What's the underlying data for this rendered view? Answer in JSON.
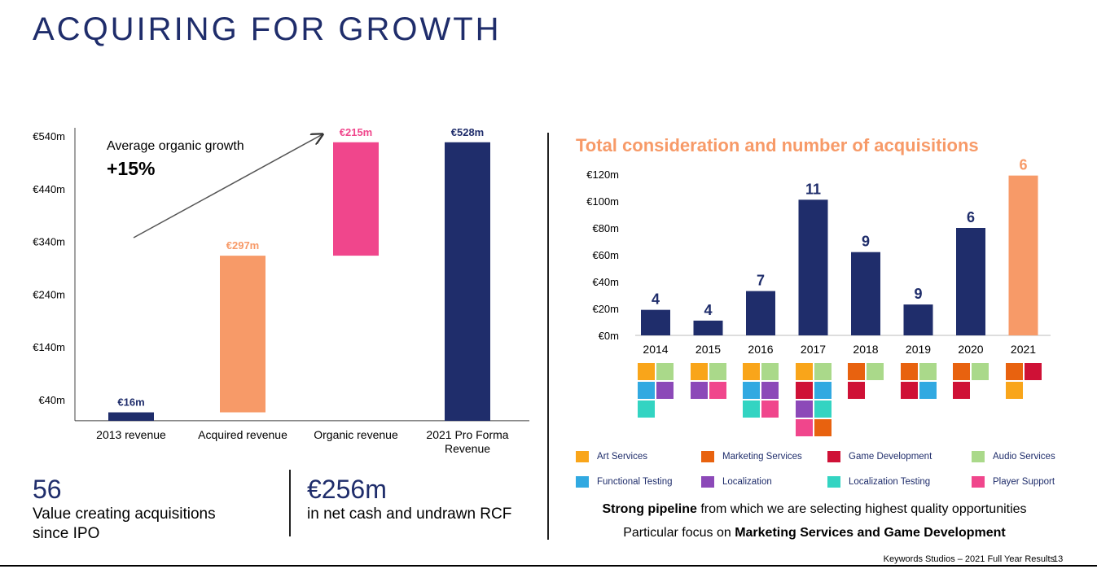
{
  "page_title": "ACQUIRING FOR GROWTH",
  "colors": {
    "navy": "#1f2d6b",
    "orange": "#f79a68",
    "pink": "#f0468c"
  },
  "growth_annotation": {
    "label": "Average organic growth",
    "value": "+15%"
  },
  "kpis": [
    {
      "value": "56",
      "text_line1": "Value creating acquisitions",
      "text_line2": "since IPO"
    },
    {
      "value": "€256m",
      "text_line1": "in net cash and undrawn RCF",
      "text_line2": ""
    }
  ],
  "chart2_title": "Total consideration and number of acquisitions",
  "pipeline": {
    "line1_bold": "Strong pipeline",
    "line1_rest": " from which we are selecting highest quality opportunities",
    "line2_rest": "Particular focus on ",
    "line2_bold": "Marketing Services and Game Development"
  },
  "legend": [
    {
      "name": "Art Services",
      "color": "#f9a51a"
    },
    {
      "name": "Marketing Services",
      "color": "#e8620f"
    },
    {
      "name": "Game Development",
      "color": "#cf1136"
    },
    {
      "name": "Audio Services",
      "color": "#aad98a"
    },
    {
      "name": "Functional Testing",
      "color": "#31a9e1"
    },
    {
      "name": "Localization",
      "color": "#8c49b8"
    },
    {
      "name": "Localization Testing",
      "color": "#33d4c2"
    },
    {
      "name": "Player Support",
      "color": "#f0468c"
    }
  ],
  "service_grid": [
    {
      "year": "2014",
      "rows": [
        [
          "Art Services",
          "Audio Services"
        ],
        [
          "Functional Testing",
          "Localization"
        ],
        [
          "Localization Testing"
        ]
      ]
    },
    {
      "year": "2015",
      "rows": [
        [
          "Art Services",
          "Audio Services"
        ],
        [
          "Localization",
          "Player Support"
        ]
      ]
    },
    {
      "year": "2016",
      "rows": [
        [
          "Art Services",
          "Audio Services"
        ],
        [
          "Functional Testing",
          "Localization"
        ],
        [
          "Localization Testing",
          "Player Support"
        ]
      ]
    },
    {
      "year": "2017",
      "rows": [
        [
          "Art Services",
          "Audio Services"
        ],
        [
          "Game Development",
          "Functional Testing"
        ],
        [
          "Localization",
          "Localization Testing"
        ],
        [
          "Player Support",
          "Marketing Services"
        ]
      ]
    },
    {
      "year": "2018",
      "rows": [
        [
          "Marketing Services",
          "Audio Services"
        ],
        [
          "Game Development"
        ]
      ]
    },
    {
      "year": "2019",
      "rows": [
        [
          "Marketing Services",
          "Audio Services"
        ],
        [
          "Game Development",
          "Functional Testing"
        ]
      ]
    },
    {
      "year": "2020",
      "rows": [
        [
          "Marketing Services",
          "Audio Services"
        ],
        [
          "Game Development"
        ]
      ]
    },
    {
      "year": "2021",
      "rows": [
        [
          "Marketing Services",
          "Game Development"
        ],
        [
          "Art Services"
        ]
      ]
    }
  ],
  "footer": "Keywords Studios – 2021 Full Year Results",
  "page_number": "13",
  "chart_data": [
    {
      "type": "bar",
      "subtype": "waterfall",
      "categories": [
        "2013 revenue",
        "Acquired revenue",
        "Organic revenue",
        "2021 Pro Forma Revenue"
      ],
      "category_lines": [
        [
          "2013 revenue"
        ],
        [
          "Acquired revenue"
        ],
        [
          "Organic revenue"
        ],
        [
          "2021 Pro Forma",
          "Revenue"
        ]
      ],
      "values": [
        16,
        297,
        215,
        528
      ],
      "bases": [
        0,
        16,
        313,
        0
      ],
      "data_labels": [
        "€16m",
        "€297m",
        "€215m",
        "€528m"
      ],
      "colors": [
        "#1f2d6b",
        "#f79a68",
        "#f0468c",
        "#1f2d6b"
      ],
      "ylim": [
        0,
        560
      ],
      "yticks": [
        40,
        140,
        240,
        340,
        440,
        540
      ],
      "ytick_labels": [
        "€40m",
        "€140m",
        "€240m",
        "€340m",
        "€440m",
        "€540m"
      ],
      "grid": false
    },
    {
      "type": "bar",
      "title": "Total consideration and number of acquisitions",
      "categories": [
        "2014",
        "2015",
        "2016",
        "2017",
        "2018",
        "2019",
        "2020",
        "2021"
      ],
      "values": [
        19,
        11,
        33,
        101,
        62,
        23,
        80,
        119
      ],
      "acquisition_counts": [
        "4",
        "4",
        "7",
        "11",
        "9",
        "9",
        "6",
        "6"
      ],
      "colors": [
        "#1f2d6b",
        "#1f2d6b",
        "#1f2d6b",
        "#1f2d6b",
        "#1f2d6b",
        "#1f2d6b",
        "#1f2d6b",
        "#f79a68"
      ],
      "ylim": [
        0,
        120
      ],
      "yticks": [
        0,
        20,
        40,
        60,
        80,
        100,
        120
      ],
      "ytick_labels": [
        "€0m",
        "€20m",
        "€40m",
        "€60m",
        "€80m",
        "€100m",
        "€120m"
      ],
      "grid": false
    }
  ]
}
